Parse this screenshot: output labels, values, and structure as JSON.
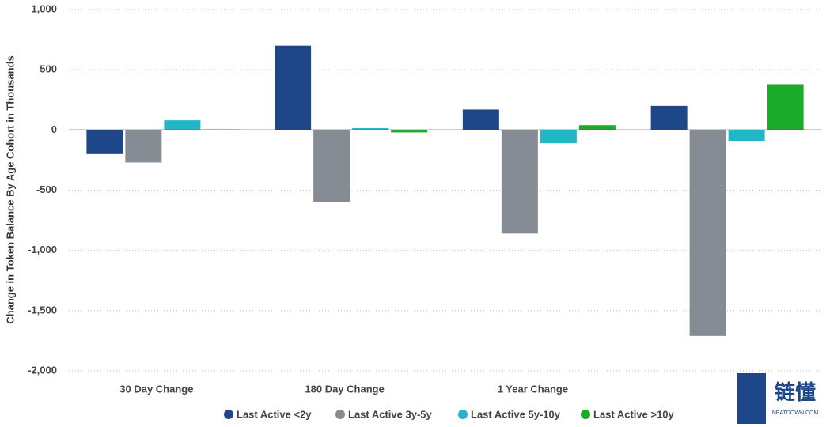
{
  "chart_data": {
    "type": "bar",
    "y_label": "Change in Token Balance By Age Cohort in Thousands",
    "categories": [
      "30 Day Change",
      "180 Day Change",
      "1 Year Change",
      null
    ],
    "series": [
      {
        "name": "Last Active <2y",
        "color": "#1d4788",
        "values": [
          -200,
          700,
          170,
          200
        ]
      },
      {
        "name": "Last Active 3y-5y",
        "color": "#858c93",
        "values": [
          -270,
          -600,
          -860,
          -1710
        ]
      },
      {
        "name": "Last Active 5y-10y",
        "color": "#22b7c6",
        "values": [
          80,
          15,
          -110,
          -90
        ]
      },
      {
        "name": "Last Active >10y",
        "color": "#1aab2b",
        "values": [
          5,
          -20,
          40,
          380
        ]
      }
    ],
    "ylim": [
      -2000,
      1000
    ],
    "yticks": [
      {
        "value": 1000,
        "label": "1,000"
      },
      500,
      0,
      -500,
      {
        "value": -1000,
        "label": "-1,000"
      },
      {
        "value": -1500,
        "label": "-1,500"
      },
      {
        "value": -2000,
        "label": "-2,000"
      }
    ],
    "grid": true,
    "legend": "bottom"
  },
  "watermark": {
    "text": "链懂",
    "url": "NEATDOWN.COM"
  }
}
